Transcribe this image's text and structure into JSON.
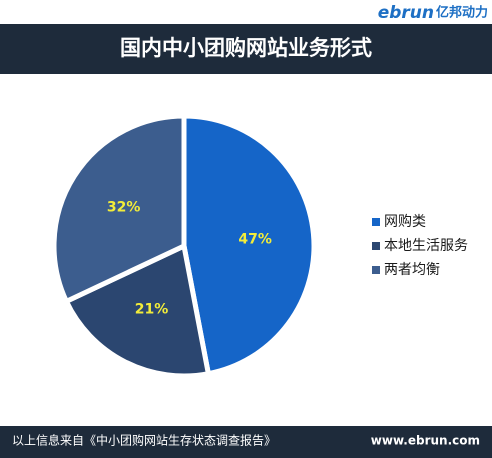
{
  "logo": {
    "brand": "ebrun",
    "tagline": "亿邦动力"
  },
  "chart_data": {
    "type": "pie",
    "title": "国内中小团购网站业务形式",
    "categories": [
      "网购类",
      "本地生活服务",
      "两者均衡"
    ],
    "values": [
      47,
      21,
      32
    ],
    "value_labels": [
      "47%",
      "21%",
      "32%"
    ],
    "colors": [
      "#1565c8",
      "#2b4670",
      "#3c5d8e"
    ],
    "label_color": "#f2ec3a",
    "legend": "right"
  },
  "footer": {
    "source": "以上信息来自《中小团购网站生存状态调查报告》",
    "url": "www.ebrun.com"
  }
}
